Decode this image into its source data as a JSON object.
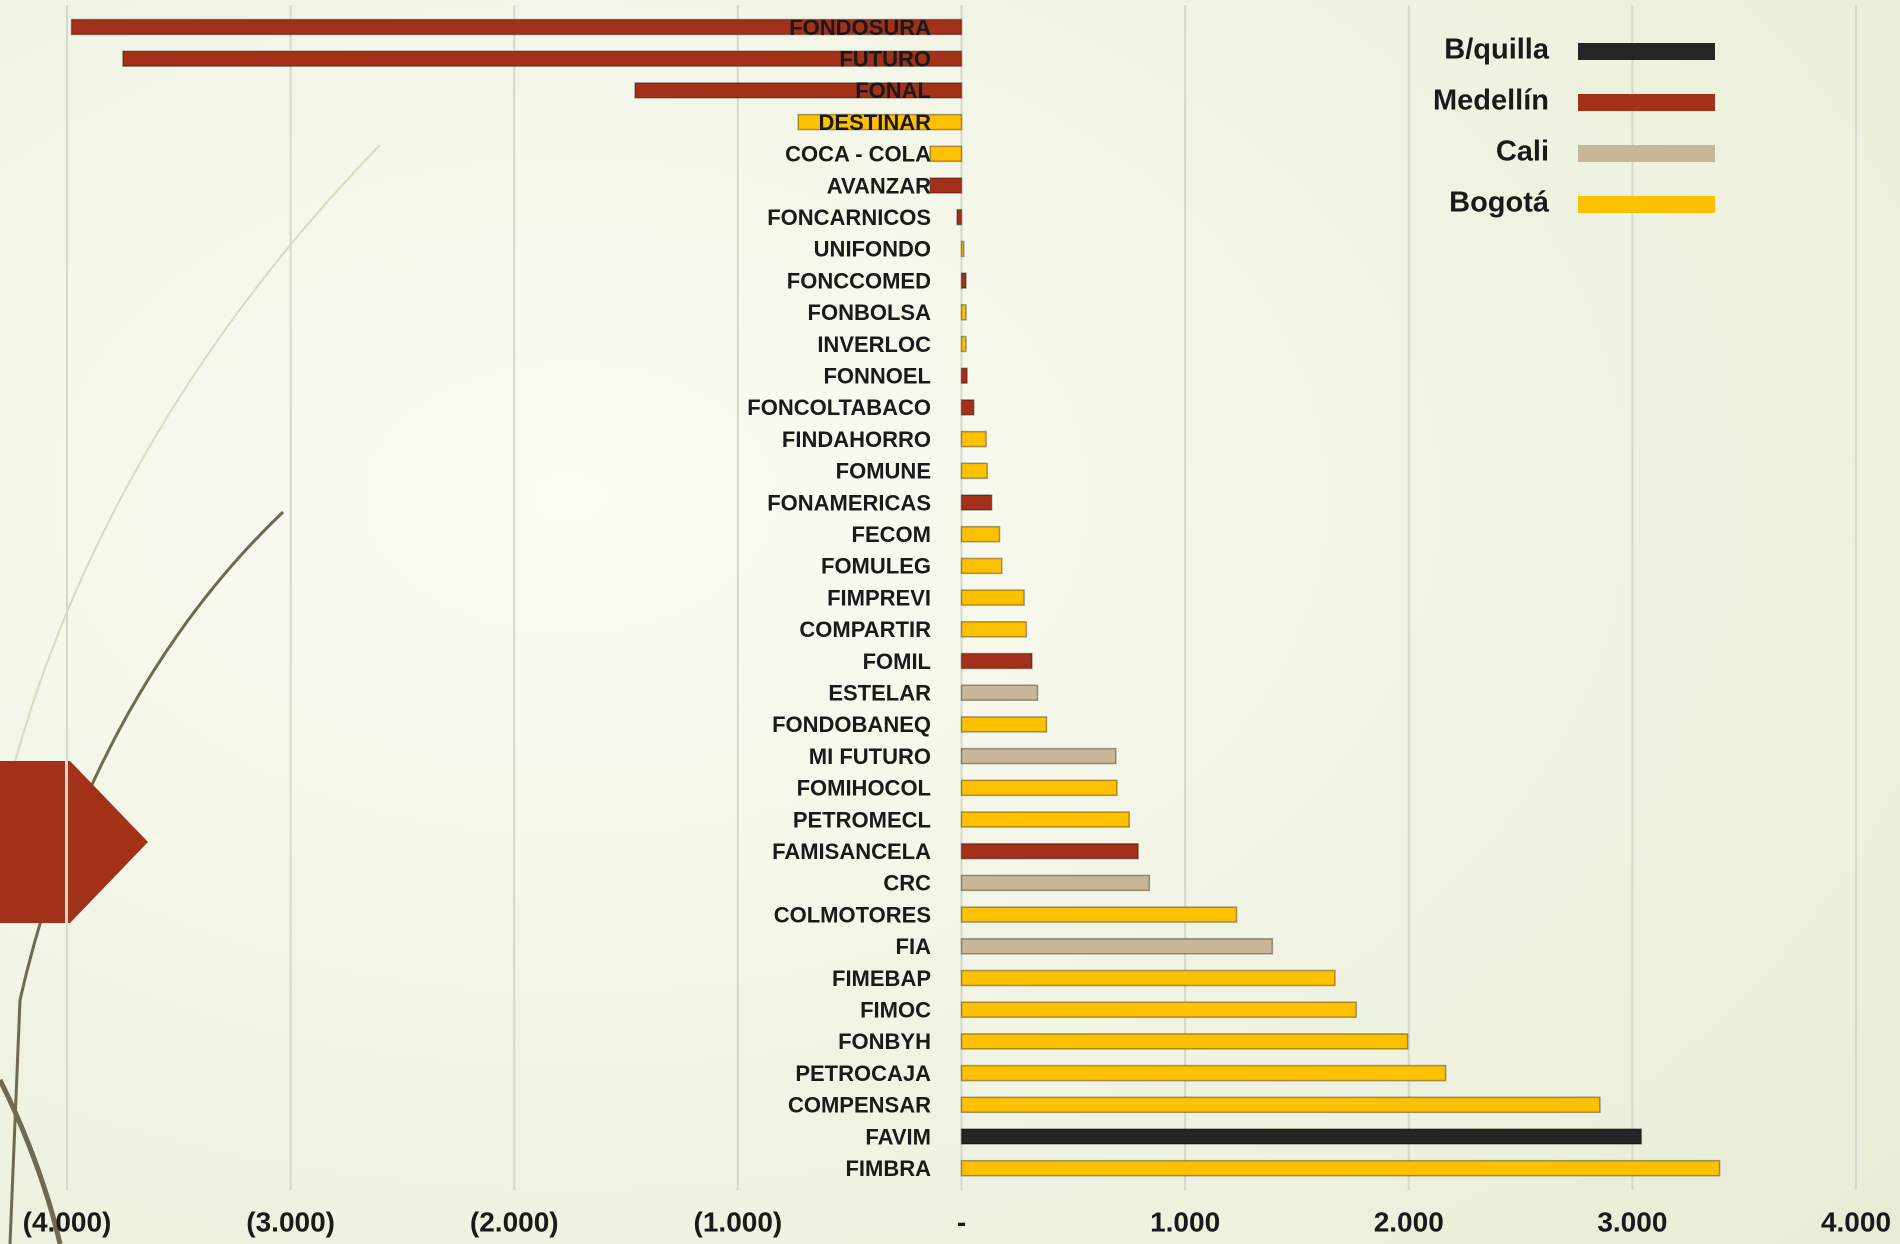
{
  "chart_data": {
    "type": "bar",
    "orientation": "horizontal",
    "categories": [
      "FONDOSURA",
      "FUTURO",
      "FONAL",
      "DESTINAR",
      "COCA - COLA",
      "AVANZAR",
      "FONCARNICOS",
      "UNIFONDO",
      "FONCCOMED",
      "FONBOLSA",
      "INVERLOC",
      "FONNOEL",
      "FONCOLTABACO",
      "FINDAHORRO",
      "FOMUNE",
      "FONAMERICAS",
      "FECOM",
      "FOMULEG",
      "FIMPREVI",
      "COMPARTIR",
      "FOMIL",
      "ESTELAR",
      "FONDOBANEQ",
      "MI FUTURO",
      "FOMIHOCOL",
      "PETROMECL",
      "FAMISANCELA",
      "CRC",
      "COLMOTORES",
      "FIA",
      "FIMEBAP",
      "FIMOC",
      "FONBYH",
      "PETROCAJA",
      "COMPENSAR",
      "FAVIM",
      "FIMBRA"
    ],
    "series": [
      {
        "name": "B/quilla",
        "color": "#262626",
        "values": [
          null,
          null,
          null,
          null,
          null,
          null,
          null,
          null,
          null,
          null,
          null,
          null,
          null,
          null,
          null,
          null,
          null,
          null,
          null,
          null,
          null,
          null,
          null,
          null,
          null,
          null,
          null,
          null,
          null,
          null,
          null,
          null,
          null,
          null,
          null,
          3040,
          null
        ]
      },
      {
        "name": "Medellín",
        "color": "#a3311a",
        "values": [
          -3980,
          -3750,
          -1460,
          null,
          null,
          -140,
          -20,
          null,
          20,
          null,
          null,
          25,
          55,
          null,
          null,
          135,
          null,
          null,
          null,
          null,
          315,
          null,
          null,
          null,
          null,
          null,
          790,
          null,
          null,
          null,
          null,
          null,
          null,
          null,
          null,
          null,
          null
        ]
      },
      {
        "name": "Cali",
        "color": "#c9b597",
        "values": [
          null,
          null,
          null,
          null,
          null,
          null,
          null,
          null,
          null,
          null,
          null,
          null,
          null,
          null,
          null,
          null,
          null,
          null,
          null,
          null,
          null,
          340,
          null,
          690,
          null,
          null,
          null,
          840,
          null,
          1390,
          null,
          null,
          null,
          null,
          null,
          null,
          null
        ]
      },
      {
        "name": "Bogotá",
        "color": "#ffc000",
        "values": [
          null,
          null,
          null,
          -730,
          -140,
          null,
          null,
          10,
          null,
          20,
          20,
          null,
          null,
          110,
          115,
          null,
          170,
          180,
          280,
          290,
          null,
          null,
          380,
          null,
          695,
          750,
          null,
          null,
          1230,
          null,
          1670,
          1765,
          1995,
          2165,
          2855,
          null,
          3390
        ]
      }
    ],
    "xlim": [
      -4000,
      4000
    ],
    "xticks": [
      {
        "value": -4000,
        "label": "(4.000)"
      },
      {
        "value": -3000,
        "label": "(3.000)"
      },
      {
        "value": -2000,
        "label": "(2.000)"
      },
      {
        "value": -1000,
        "label": "(1.000)"
      },
      {
        "value": 0,
        "label": "-"
      },
      {
        "value": 1000,
        "label": "1.000"
      },
      {
        "value": 2000,
        "label": "2.000"
      },
      {
        "value": 3000,
        "label": "3.000"
      },
      {
        "value": 4000,
        "label": "4.000"
      }
    ],
    "grid": true
  }
}
